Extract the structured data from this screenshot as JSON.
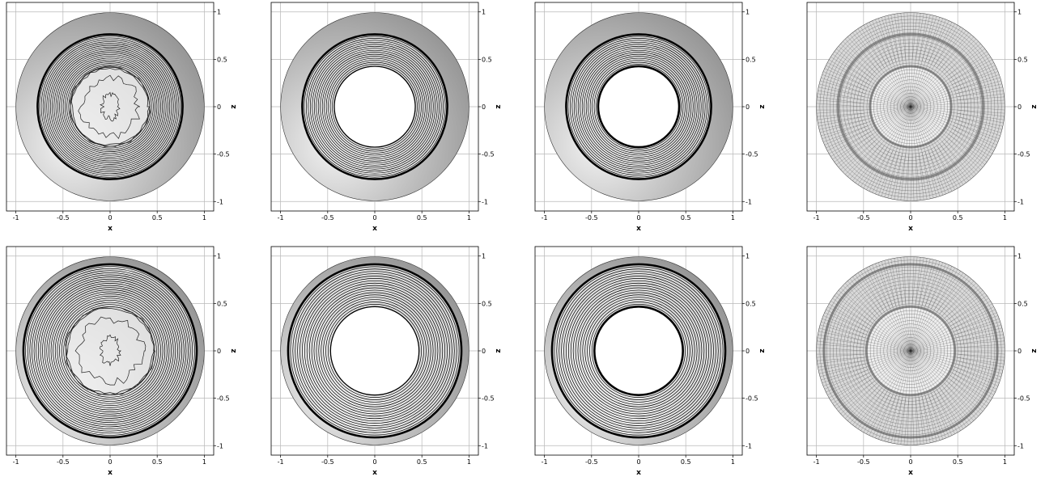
{
  "figure": {
    "panels": [
      {
        "id": "r1c1",
        "kind": "contour",
        "outer_radius": 1.0,
        "band_outer": 0.77,
        "hole_radius": 0.0,
        "irregular_core": true,
        "core_radius": 0.42,
        "n_rings": 18,
        "heavy_rings": [
          0.77
        ],
        "xlabel": "x",
        "ylabel": "z"
      },
      {
        "id": "r1c2",
        "kind": "contour",
        "outer_radius": 1.0,
        "band_outer": 0.77,
        "hole_radius": 0.43,
        "irregular_core": false,
        "n_rings": 16,
        "heavy_rings": [
          0.77
        ],
        "xlabel": "x",
        "ylabel": "z"
      },
      {
        "id": "r1c3",
        "kind": "contour",
        "outer_radius": 1.0,
        "band_outer": 0.77,
        "hole_radius": 0.43,
        "irregular_core": false,
        "n_rings": 16,
        "heavy_rings": [
          0.77,
          0.43
        ],
        "xlabel": "x",
        "ylabel": "z"
      },
      {
        "id": "r1c4",
        "kind": "mesh",
        "outer_radius": 1.0,
        "band_outer": 0.77,
        "hole_radius": 0.43,
        "xlabel": "x",
        "ylabel": "z"
      },
      {
        "id": "r2c1",
        "kind": "contour",
        "outer_radius": 1.0,
        "band_outer": 0.92,
        "hole_radius": 0.0,
        "irregular_core": true,
        "core_radius": 0.47,
        "n_rings": 20,
        "heavy_rings": [
          0.92
        ],
        "xlabel": "x",
        "ylabel": "z"
      },
      {
        "id": "r2c2",
        "kind": "contour",
        "outer_radius": 1.0,
        "band_outer": 0.92,
        "hole_radius": 0.47,
        "irregular_core": false,
        "n_rings": 18,
        "heavy_rings": [
          0.92
        ],
        "xlabel": "x",
        "ylabel": "z"
      },
      {
        "id": "r2c3",
        "kind": "contour",
        "outer_radius": 1.0,
        "band_outer": 0.92,
        "hole_radius": 0.47,
        "irregular_core": false,
        "n_rings": 18,
        "heavy_rings": [
          0.92,
          0.47
        ],
        "xlabel": "x",
        "ylabel": "z"
      },
      {
        "id": "r2c4",
        "kind": "mesh",
        "outer_radius": 1.0,
        "band_outer": 0.92,
        "hole_radius": 0.47,
        "xlabel": "x",
        "ylabel": "z"
      }
    ],
    "x_ticks": [
      -1,
      -0.5,
      0,
      0.5,
      1
    ],
    "x_tick_labels": [
      "-1",
      "-0.5",
      "0",
      "0.5",
      "1"
    ],
    "z_ticks": [
      1,
      0.5,
      0,
      -0.5,
      -1
    ],
    "z_tick_labels": [
      "1",
      "0.5",
      "0",
      "-0.5",
      "-1"
    ],
    "xlim": [
      -1.1,
      1.1
    ],
    "zlim": [
      -1.1,
      1.1
    ],
    "colors": {
      "frame": "#000000",
      "grid": "#b8b8b8",
      "disk_light": "#f4f4f4",
      "disk_dark": "#8e8e8e",
      "contour": "#000000",
      "mesh": "#2a2a2a"
    }
  }
}
